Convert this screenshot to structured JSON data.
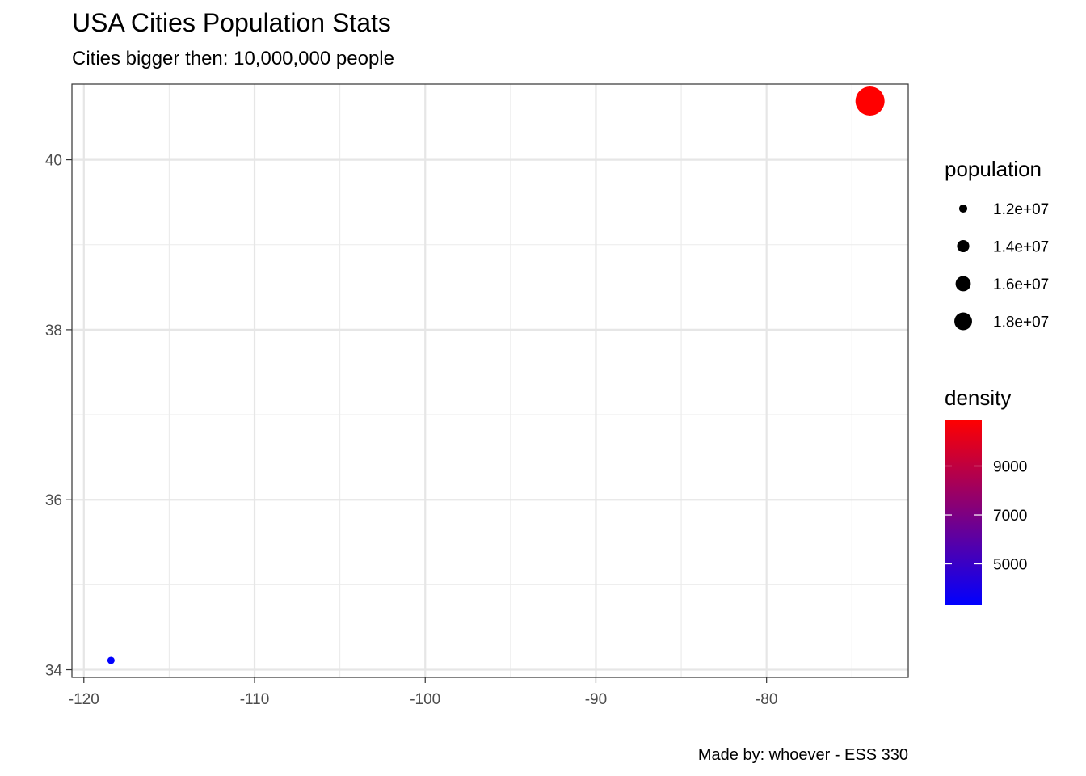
{
  "chart_data": {
    "type": "scatter",
    "title": "USA Cities Population Stats",
    "subtitle": "Cities bigger then: 10,000,000 people",
    "caption": "Made by: whoever - ESS 330",
    "xlabel": "",
    "ylabel": "",
    "xlim": [
      -120.7,
      -71.7
    ],
    "ylim": [
      33.91,
      40.89
    ],
    "x_ticks": [
      -120,
      -110,
      -100,
      -90,
      -80
    ],
    "x_tick_labels": [
      "-120",
      "-110",
      "-100",
      "-90",
      "-80"
    ],
    "y_ticks": [
      34,
      36,
      38,
      40
    ],
    "y_tick_labels": [
      "34",
      "36",
      "38",
      "40"
    ],
    "grid": true,
    "points": [
      {
        "x": -118.41,
        "y": 34.11,
        "population": 10900000,
        "density": 3300
      },
      {
        "x": -73.94,
        "y": 40.69,
        "population": 18800000,
        "density": 10900
      }
    ],
    "legend_size": {
      "title": "population",
      "entries": [
        {
          "label": "1.2e+07",
          "value": 12000000
        },
        {
          "label": "1.4e+07",
          "value": 14000000
        },
        {
          "label": "1.6e+07",
          "value": 16000000
        },
        {
          "label": "1.8e+07",
          "value": 18000000
        }
      ]
    },
    "legend_color": {
      "title": "density",
      "low_color": "#0000FF",
      "high_color": "#FF0000",
      "range": [
        3300,
        10900
      ],
      "ticks": [
        {
          "label": "5000",
          "value": 5000
        },
        {
          "label": "7000",
          "value": 7000
        },
        {
          "label": "9000",
          "value": 9000
        }
      ]
    },
    "legend_placement": "right"
  }
}
